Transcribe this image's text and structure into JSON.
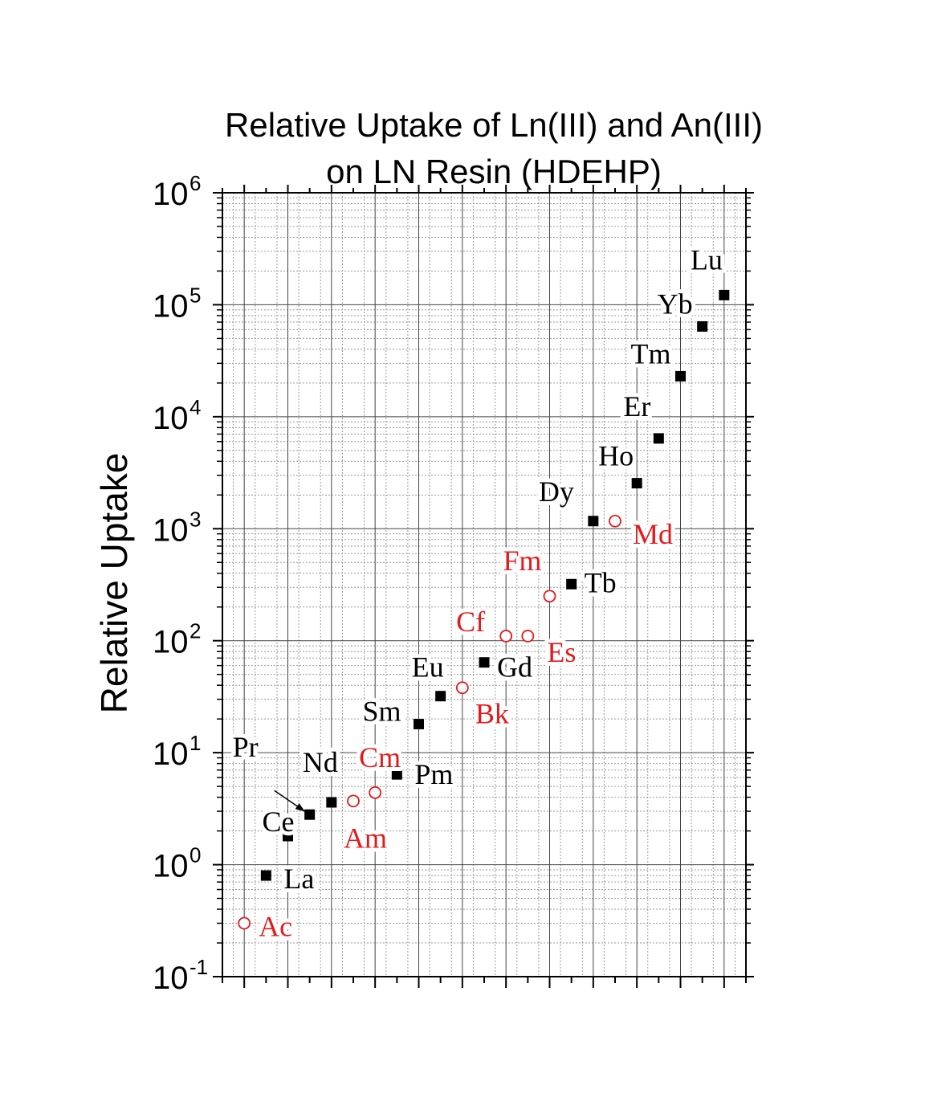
{
  "chart_data": {
    "type": "scatter",
    "title": "Relative Uptake of Ln(III) and An(III)",
    "subtitle": "on LN Resin (HDEHP)",
    "ylabel": "Relative Uptake",
    "xlabel": "",
    "yscale": "log",
    "ylim": [
      0.1,
      1000000
    ],
    "xlim": [
      0,
      24
    ],
    "ytick_values": [
      0.1,
      1,
      10,
      100,
      1000,
      10000,
      100000,
      1000000
    ],
    "ytick_labels": [
      {
        "base": "10",
        "exp": "-1"
      },
      {
        "base": "10",
        "exp": "0"
      },
      {
        "base": "10",
        "exp": "1"
      },
      {
        "base": "10",
        "exp": "2"
      },
      {
        "base": "10",
        "exp": "3"
      },
      {
        "base": "10",
        "exp": "4"
      },
      {
        "base": "10",
        "exp": "5"
      },
      {
        "base": "10",
        "exp": "6"
      }
    ],
    "grid": true,
    "colors": {
      "lanthanide": "#000000",
      "actinide": "#e31a1c"
    },
    "series": [
      {
        "group": "lanthanide",
        "marker": "filled-square",
        "points": [
          {
            "label": "La",
            "x": 2,
            "y": 0.8
          },
          {
            "label": "Ce",
            "x": 3,
            "y": 1.8
          },
          {
            "label": "Pr",
            "x": 4,
            "y": 2.8
          },
          {
            "label": "Nd",
            "x": 5,
            "y": 3.6
          },
          {
            "label": "Pm",
            "x": 8,
            "y": 6.4
          },
          {
            "label": "Sm",
            "x": 9,
            "y": 18
          },
          {
            "label": "Eu",
            "x": 10,
            "y": 32
          },
          {
            "label": "Gd",
            "x": 12,
            "y": 64
          },
          {
            "label": "Tb",
            "x": 16,
            "y": 320
          },
          {
            "label": "Dy",
            "x": 17,
            "y": 1170
          },
          {
            "label": "Ho",
            "x": 19,
            "y": 2550
          },
          {
            "label": "Er",
            "x": 20,
            "y": 6400
          },
          {
            "label": "Tm",
            "x": 21,
            "y": 23000
          },
          {
            "label": "Yb",
            "x": 22,
            "y": 64000
          },
          {
            "label": "Lu",
            "x": 23,
            "y": 122000
          }
        ]
      },
      {
        "group": "actinide",
        "marker": "open-circle",
        "points": [
          {
            "label": "Ac",
            "x": 1,
            "y": 0.3
          },
          {
            "label": "Am",
            "x": 6,
            "y": 3.7
          },
          {
            "label": "Cm",
            "x": 7,
            "y": 4.4
          },
          {
            "label": "Bk",
            "x": 11,
            "y": 38
          },
          {
            "label": "Cf",
            "x": 13,
            "y": 110
          },
          {
            "label": "Es",
            "x": 14,
            "y": 110
          },
          {
            "label": "Fm",
            "x": 15,
            "y": 250
          },
          {
            "label": "Md",
            "x": 18,
            "y": 1170
          }
        ]
      }
    ]
  }
}
